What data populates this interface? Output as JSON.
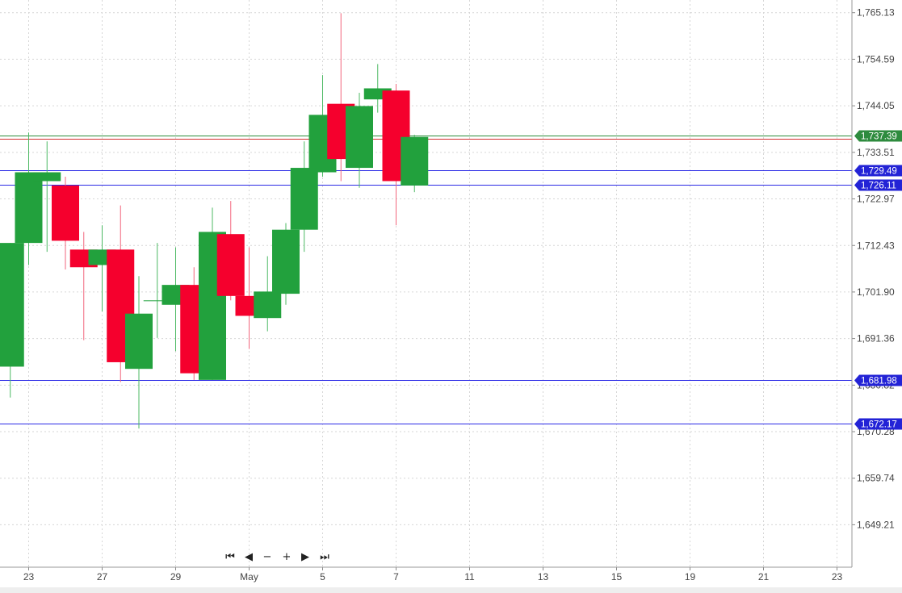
{
  "chart_data": {
    "type": "candlestick",
    "title": "",
    "xlabel": "",
    "ylabel": "",
    "ylim": [
      1639.6,
      1768.0
    ],
    "y_ticks": [
      "1,765.13",
      "1,754.59",
      "1,744.05",
      "1,733.51",
      "1,722.97",
      "1,712.43",
      "1,701.90",
      "1,691.36",
      "1,680.82",
      "1,670.28",
      "1,659.74",
      "1,649.21"
    ],
    "x_ticks": [
      "23",
      "27",
      "29",
      "May",
      "5",
      "7",
      "11",
      "13",
      "15",
      "19",
      "21",
      "23"
    ],
    "grid": true,
    "up_color": "#22a13d",
    "down_color": "#f5002d",
    "candles": [
      {
        "o": 1685.0,
        "h": 1713.0,
        "l": 1678.0,
        "c": 1713.0
      },
      {
        "o": 1713.0,
        "h": 1738.0,
        "l": 1708.0,
        "c": 1729.0
      },
      {
        "o": 1727.0,
        "h": 1736.0,
        "l": 1711.0,
        "c": 1729.0
      },
      {
        "o": 1726.0,
        "h": 1728.0,
        "l": 1707.0,
        "c": 1713.5
      },
      {
        "o": 1711.5,
        "h": 1715.5,
        "l": 1691.0,
        "c": 1707.5
      },
      {
        "o": 1708.0,
        "h": 1717.0,
        "l": 1697.5,
        "c": 1711.5
      },
      {
        "o": 1711.5,
        "h": 1721.5,
        "l": 1681.5,
        "c": 1686.0
      },
      {
        "o": 1684.5,
        "h": 1705.5,
        "l": 1671.0,
        "c": 1697.0
      },
      {
        "o": 1700.0,
        "h": 1713.0,
        "l": 1691.5,
        "c": 1700.0
      },
      {
        "o": 1699.0,
        "h": 1712.0,
        "l": 1688.5,
        "c": 1703.5
      },
      {
        "o": 1703.5,
        "h": 1707.5,
        "l": 1682.0,
        "c": 1683.5
      },
      {
        "o": 1682.0,
        "h": 1721.0,
        "l": 1682.0,
        "c": 1715.5
      },
      {
        "o": 1715.0,
        "h": 1722.5,
        "l": 1700.0,
        "c": 1701.0
      },
      {
        "o": 1701.0,
        "h": 1712.0,
        "l": 1689.0,
        "c": 1696.5
      },
      {
        "o": 1696.0,
        "h": 1710.0,
        "l": 1693.0,
        "c": 1702.0
      },
      {
        "o": 1701.5,
        "h": 1717.5,
        "l": 1699.0,
        "c": 1716.0
      },
      {
        "o": 1716.0,
        "h": 1736.0,
        "l": 1711.0,
        "c": 1730.0
      },
      {
        "o": 1729.0,
        "h": 1751.0,
        "l": 1728.0,
        "c": 1742.0
      },
      {
        "o": 1744.5,
        "h": 1765.0,
        "l": 1727.0,
        "c": 1732.0
      },
      {
        "o": 1730.0,
        "h": 1747.0,
        "l": 1725.5,
        "c": 1744.0
      },
      {
        "o": 1745.5,
        "h": 1753.5,
        "l": 1742.5,
        "c": 1748.0
      },
      {
        "o": 1747.5,
        "h": 1749.0,
        "l": 1717.0,
        "c": 1727.0
      },
      {
        "o": 1726.0,
        "h": 1737.5,
        "l": 1724.5,
        "c": 1737.0
      }
    ],
    "hlines": [
      {
        "value": 1737.39,
        "label": "1,737.39",
        "color": "#2d8c3a",
        "tag": "green"
      },
      {
        "value": 1736.6,
        "label": "",
        "color": "#d32f2f",
        "tag": "none"
      },
      {
        "value": 1729.49,
        "label": "1,729.49",
        "color": "#2b2ae6",
        "tag": "blue"
      },
      {
        "value": 1726.11,
        "label": "1,726.11",
        "color": "#2b2ae6",
        "tag": "blue"
      },
      {
        "value": 1681.98,
        "label": "1,681.98",
        "color": "#2b2ae6",
        "tag": "blue"
      },
      {
        "value": 1672.17,
        "label": "1,672.17",
        "color": "#2b2ae6",
        "tag": "blue"
      }
    ]
  },
  "navigation": {
    "first": "⏮",
    "prev": "◀",
    "zoom_out": "−",
    "zoom_in": "+",
    "next": "▶",
    "last": "⏭"
  }
}
